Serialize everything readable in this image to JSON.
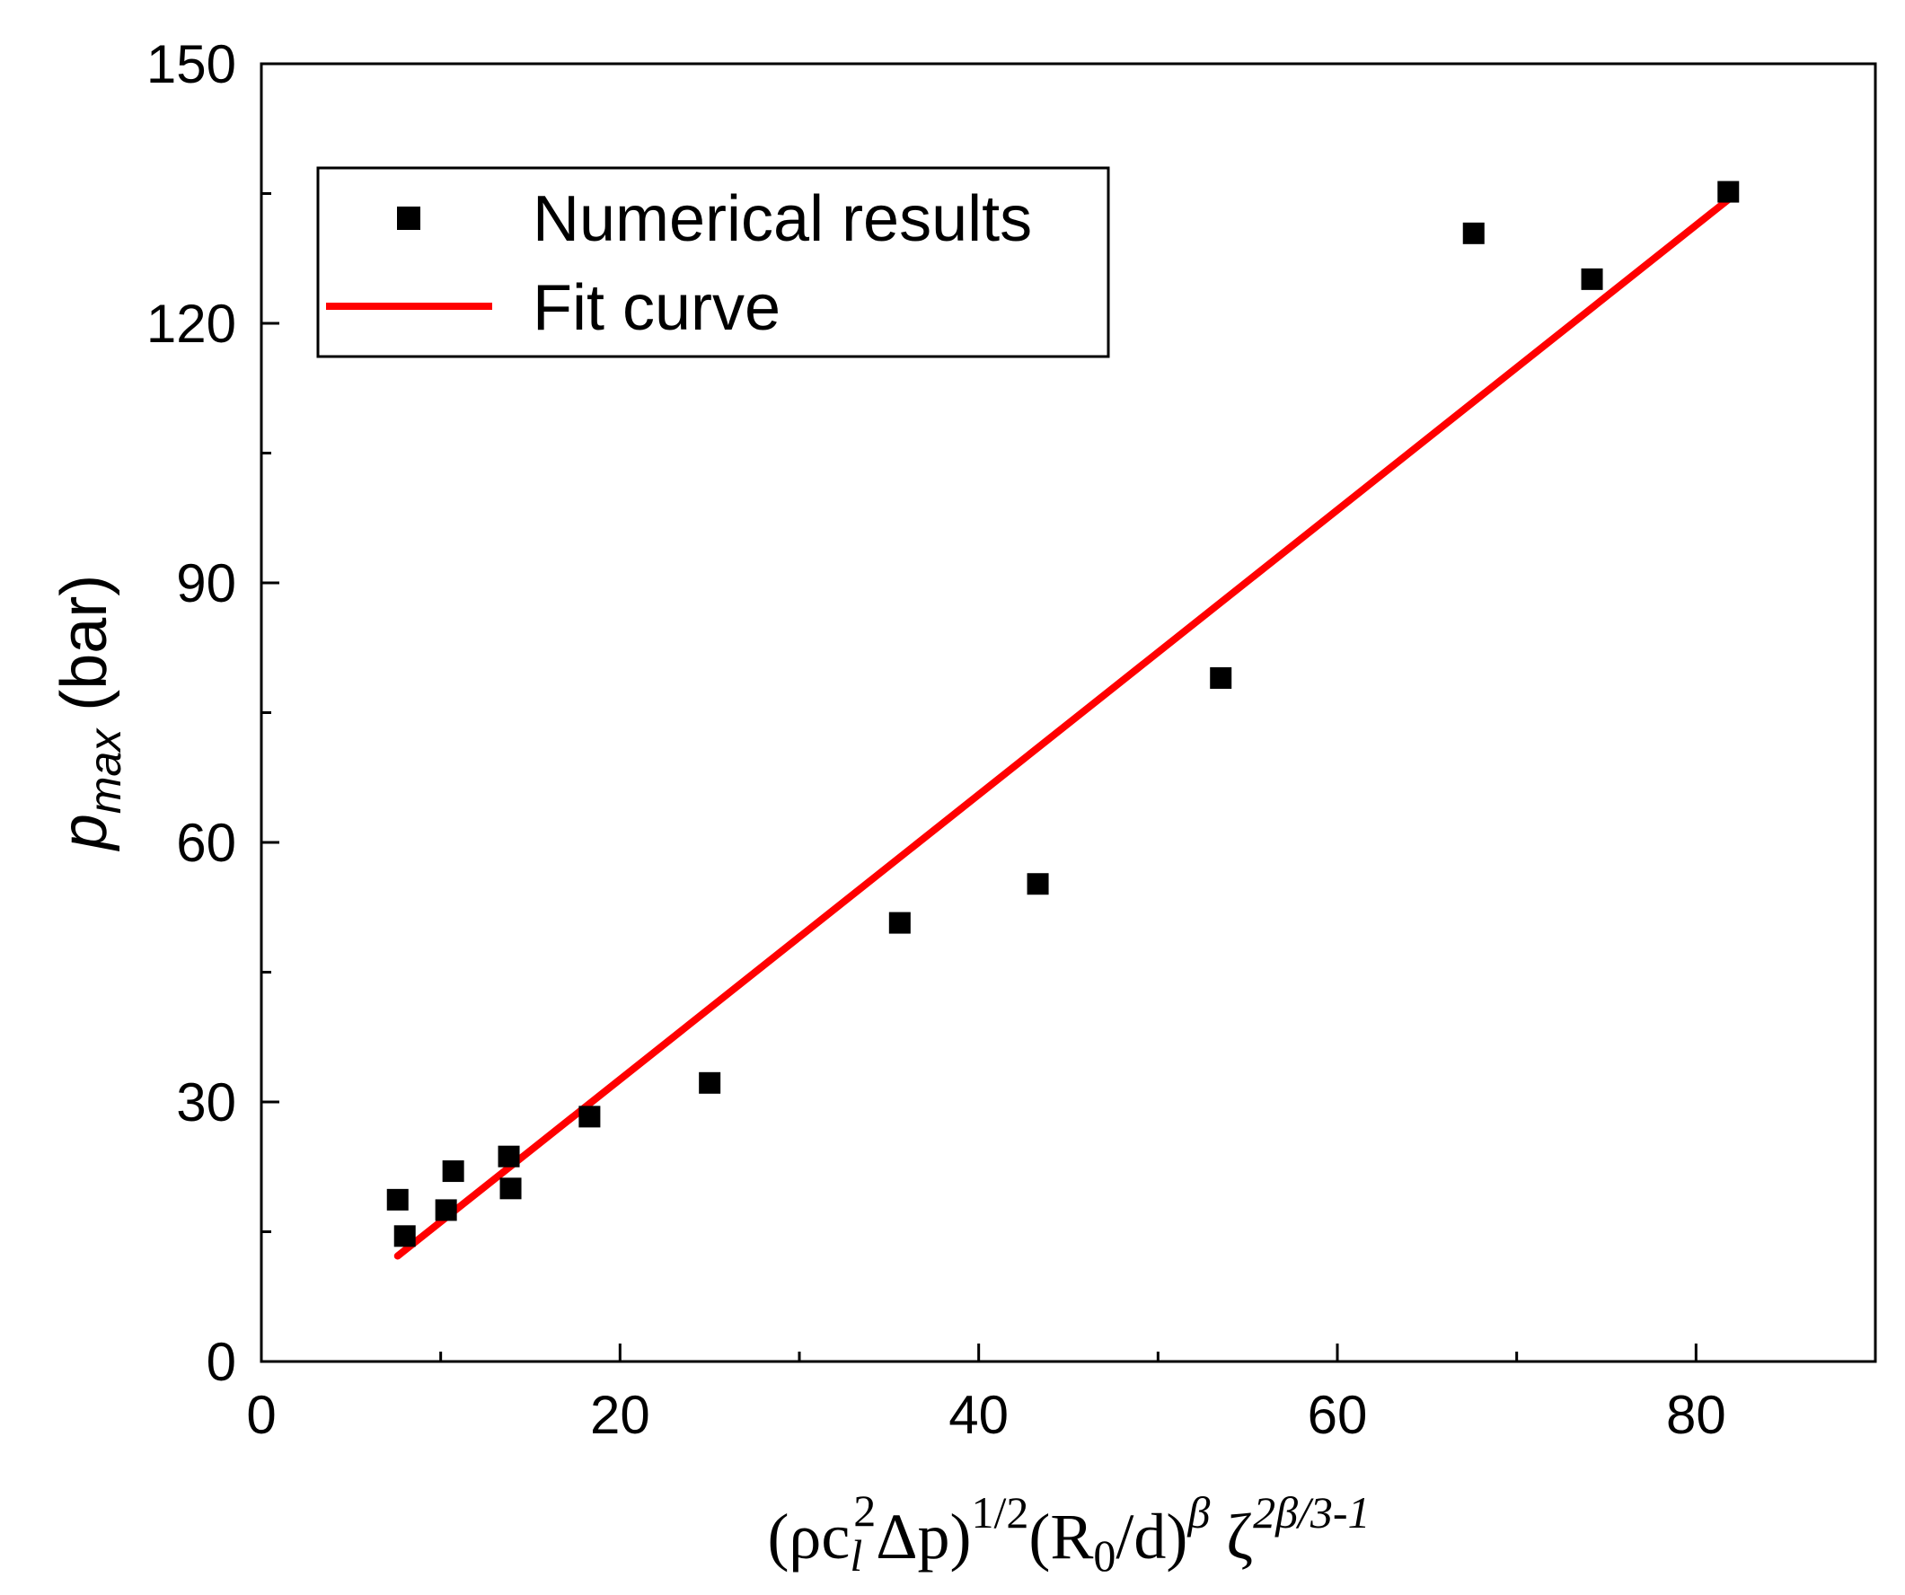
{
  "chart_data": {
    "type": "scatter",
    "title": "",
    "xlim": [
      0,
      90
    ],
    "ylim": [
      0,
      150
    ],
    "x_ticks": [
      0,
      20,
      40,
      60,
      80
    ],
    "y_ticks": [
      0,
      30,
      60,
      90,
      120,
      150
    ],
    "x_tick_labels": [
      "0",
      "20",
      "40",
      "60",
      "80"
    ],
    "y_tick_labels": [
      "0",
      "30",
      "60",
      "90",
      "120",
      "150"
    ],
    "x_minor_ticks": [
      10,
      30,
      50,
      70
    ],
    "y_minor_ticks": [
      15,
      45,
      75,
      105,
      135
    ],
    "ylabel": {
      "symbol": "p",
      "subscript": "max",
      "unit": " (bar)"
    },
    "xlabel": {
      "p1": "(ρc",
      "p1_sub": "l",
      "p1_sup": "2",
      "p2": "Δp)",
      "p2_sup": "1/2",
      "p3": "(R",
      "p3_sub": "0",
      "p4": "/d)",
      "p4_sup": "β",
      "p5": " ζ",
      "p5_sup": "2β/3-1"
    },
    "legend": {
      "position": "top-left",
      "entries": [
        "Numerical results",
        "Fit curve"
      ]
    },
    "series": [
      {
        "name": "Numerical results",
        "kind": "scatter",
        "color": "#000000",
        "marker": "square",
        "x": [
          7.6,
          8.0,
          10.3,
          10.7,
          13.8,
          13.9,
          18.3,
          25.0,
          35.6,
          43.3,
          53.5,
          67.6,
          74.2,
          81.8
        ],
        "y": [
          18.7,
          14.5,
          17.5,
          22.0,
          23.7,
          20.0,
          28.3,
          32.2,
          50.7,
          55.2,
          79.0,
          130.4,
          125.1,
          135.2
        ]
      },
      {
        "name": "Fit curve",
        "kind": "line",
        "color": "#ff0000",
        "x": [
          7.6,
          81.8
        ],
        "y": [
          12.2,
          134.3
        ]
      }
    ]
  }
}
